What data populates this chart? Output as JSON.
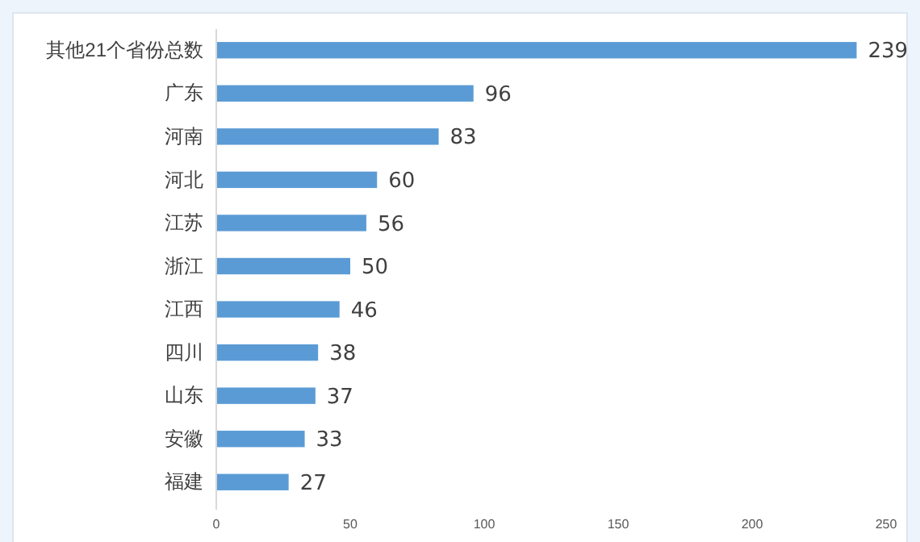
{
  "chart_data": {
    "type": "bar",
    "orientation": "horizontal",
    "categories": [
      "其他21个省份总数",
      "广东",
      "河南",
      "河北",
      "江苏",
      "浙江",
      "江西",
      "四川",
      "山东",
      "安徽",
      "福建"
    ],
    "values": [
      239,
      96,
      83,
      60,
      56,
      50,
      46,
      38,
      37,
      33,
      27
    ],
    "color": "#5b9bd5",
    "xlim": [
      0,
      250
    ],
    "xticks": [
      0,
      50,
      100,
      150,
      200,
      250
    ],
    "data_labels": true,
    "grid": false
  }
}
